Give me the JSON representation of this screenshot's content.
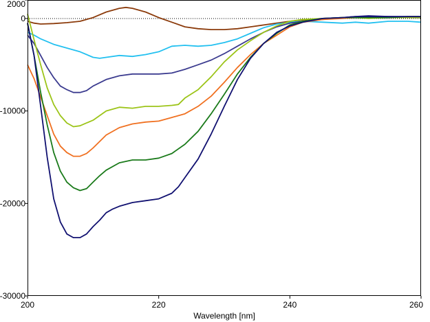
{
  "chart_data": {
    "type": "line",
    "title": "",
    "xlabel": "Wavelength [nm]",
    "ylabel": "",
    "xlim": [
      200,
      260
    ],
    "ylim": [
      -30000,
      2000
    ],
    "x_ticks": [
      200,
      220,
      240,
      260
    ],
    "y_ticks": [
      2000,
      0,
      -10000,
      -20000,
      -30000
    ],
    "x_tick_labels": [
      "200",
      "220",
      "240",
      "260"
    ],
    "y_tick_labels": [
      "2000",
      "0",
      "-10000",
      "-20000",
      "-30000"
    ],
    "zero_reference_line": true,
    "grid": false,
    "series": [
      {
        "name": "brown",
        "color": "#8B3A0A",
        "x": [
          200,
          201,
          202,
          204,
          206,
          208,
          210,
          212,
          214,
          215,
          216,
          218,
          220,
          222,
          224,
          226,
          228,
          230,
          232,
          234,
          236,
          238,
          240,
          242,
          245,
          248,
          250,
          252,
          255,
          258,
          260
        ],
        "y": [
          -300,
          -500,
          -600,
          -550,
          -450,
          -300,
          100,
          700,
          1100,
          1200,
          1100,
          700,
          100,
          -400,
          -900,
          -1100,
          -1200,
          -1200,
          -1100,
          -900,
          -700,
          -500,
          -300,
          -150,
          0,
          100,
          150,
          200,
          200,
          150,
          100
        ]
      },
      {
        "name": "light-blue",
        "color": "#22C0F0",
        "x": [
          200,
          201,
          202,
          204,
          206,
          208,
          210,
          211,
          212,
          214,
          216,
          218,
          220,
          222,
          224,
          226,
          228,
          230,
          232,
          234,
          236,
          238,
          240,
          242,
          245,
          248,
          250,
          252,
          255,
          258,
          260
        ],
        "y": [
          -1500,
          -1800,
          -2200,
          -2800,
          -3200,
          -3600,
          -4200,
          -4300,
          -4200,
          -4000,
          -4100,
          -3900,
          -3600,
          -3000,
          -2900,
          -3000,
          -2900,
          -2600,
          -2200,
          -1600,
          -1000,
          -600,
          -400,
          -300,
          -400,
          -500,
          -400,
          -500,
          -300,
          -300,
          -400
        ]
      },
      {
        "name": "dark-slate-blue",
        "color": "#3B3B8F",
        "x": [
          200,
          201,
          202,
          203,
          204,
          205,
          206,
          207,
          208,
          209,
          210,
          212,
          214,
          216,
          218,
          220,
          222,
          224,
          226,
          228,
          230,
          232,
          234,
          236,
          238,
          240,
          242,
          245,
          248,
          250,
          252,
          255,
          258,
          260
        ],
        "y": [
          -1800,
          -2700,
          -4000,
          -5300,
          -6400,
          -7300,
          -7700,
          -8000,
          -8000,
          -7800,
          -7300,
          -6600,
          -6200,
          -6000,
          -6000,
          -6000,
          -5900,
          -5500,
          -5000,
          -4500,
          -3800,
          -3000,
          -2200,
          -1500,
          -900,
          -500,
          -300,
          -100,
          100,
          200,
          300,
          200,
          200,
          200
        ]
      },
      {
        "name": "yellow-green",
        "color": "#9CC418",
        "x": [
          200,
          201,
          202,
          203,
          204,
          205,
          206,
          207,
          208,
          209,
          210,
          212,
          214,
          216,
          218,
          220,
          222,
          223,
          224,
          226,
          228,
          230,
          232,
          234,
          236,
          238,
          240,
          242,
          245,
          248,
          250,
          252,
          255,
          258,
          260
        ],
        "y": [
          500,
          -2300,
          -5000,
          -7500,
          -9300,
          -10500,
          -11300,
          -11700,
          -11600,
          -11300,
          -11000,
          -10000,
          -9600,
          -9700,
          -9500,
          -9500,
          -9400,
          -9300,
          -8600,
          -7700,
          -6300,
          -4700,
          -3400,
          -2400,
          -1500,
          -800,
          -300,
          -100,
          0,
          100,
          100,
          0,
          100,
          100,
          100
        ]
      },
      {
        "name": "orange",
        "color": "#F07020",
        "x": [
          200,
          201,
          202,
          203,
          204,
          205,
          206,
          207,
          208,
          209,
          210,
          212,
          214,
          216,
          218,
          220,
          222,
          224,
          226,
          228,
          230,
          232,
          234,
          236,
          238,
          240,
          242,
          245,
          248,
          250,
          252,
          255,
          258,
          260
        ],
        "y": [
          -5000,
          -6500,
          -8500,
          -10500,
          -12500,
          -13800,
          -14500,
          -14900,
          -14900,
          -14600,
          -14000,
          -12600,
          -11800,
          -11400,
          -11200,
          -11100,
          -10700,
          -10300,
          -9500,
          -8400,
          -6900,
          -5300,
          -3900,
          -2700,
          -1800,
          -900,
          -400,
          -100,
          0,
          100,
          100,
          100,
          200,
          200
        ]
      },
      {
        "name": "green",
        "color": "#1A7A1A",
        "x": [
          200,
          201,
          202,
          203,
          204,
          205,
          206,
          207,
          208,
          209,
          210,
          211,
          212,
          214,
          216,
          218,
          220,
          222,
          224,
          226,
          228,
          230,
          232,
          234,
          236,
          238,
          240,
          242,
          245,
          248,
          250,
          252,
          255,
          258,
          260
        ],
        "y": [
          -500,
          -4000,
          -8000,
          -11500,
          -14500,
          -16500,
          -17700,
          -18300,
          -18600,
          -18400,
          -17700,
          -17000,
          -16400,
          -15600,
          -15300,
          -15300,
          -15100,
          -14600,
          -13600,
          -12200,
          -10300,
          -8200,
          -6000,
          -4200,
          -2700,
          -1600,
          -700,
          -300,
          0,
          100,
          100,
          100,
          100,
          200,
          200
        ]
      },
      {
        "name": "navy",
        "color": "#101070",
        "x": [
          200,
          201,
          202,
          203,
          204,
          205,
          206,
          207,
          208,
          209,
          210,
          211,
          212,
          213,
          214,
          216,
          218,
          220,
          222,
          223,
          224,
          226,
          228,
          230,
          232,
          234,
          236,
          238,
          240,
          242,
          245,
          248,
          250,
          252,
          255,
          258,
          260
        ],
        "y": [
          -500,
          -4000,
          -9500,
          -15000,
          -19500,
          -22000,
          -23300,
          -23700,
          -23700,
          -23300,
          -22500,
          -21800,
          -21000,
          -20600,
          -20300,
          -19900,
          -19700,
          -19500,
          -18900,
          -18200,
          -17200,
          -15200,
          -12500,
          -9500,
          -6600,
          -4300,
          -2700,
          -1500,
          -800,
          -400,
          0,
          100,
          200,
          200,
          200,
          200,
          200
        ]
      }
    ]
  }
}
